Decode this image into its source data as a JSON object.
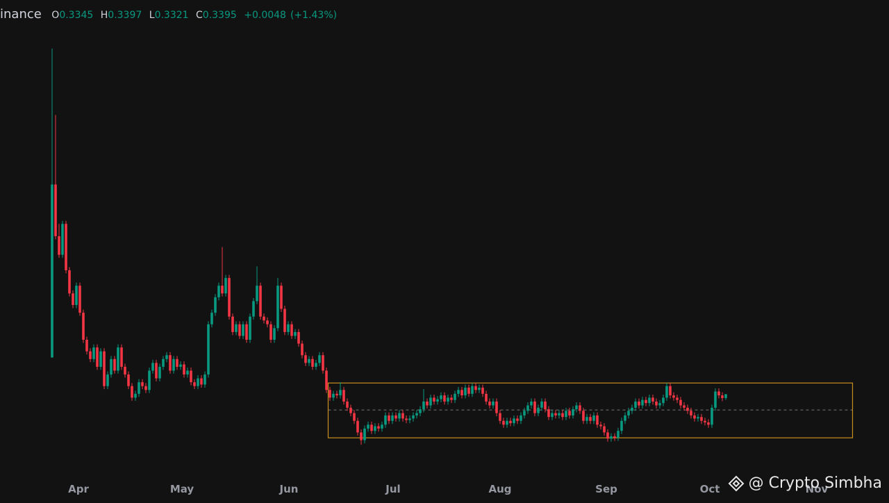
{
  "header": {
    "symbol": "inance",
    "labels": [
      "O",
      "H",
      "L",
      "C"
    ],
    "change": "+0.0048",
    "change_percent": "(+1.43%)"
  },
  "watermark": "@ Crypto Simbha",
  "chart_data": {
    "type": "candlestick",
    "up_color": "#089981",
    "down_color": "#f23645",
    "xlim": [
      -15,
      241
    ],
    "ylim": [
      0.24,
      0.84
    ],
    "xticks": [
      {
        "value": 7.6,
        "label": "Apr"
      },
      {
        "value": 37.4,
        "label": "May"
      },
      {
        "value": 68.2,
        "label": "Jun"
      },
      {
        "value": 98.2,
        "label": "Jul"
      },
      {
        "value": 129,
        "label": "Aug"
      },
      {
        "value": 159.6,
        "label": "Sep"
      },
      {
        "value": 189.4,
        "label": "Oct"
      },
      {
        "value": 220.2,
        "label": "Nov"
      }
    ],
    "range_box": {
      "x": [
        79.5,
        230.5
      ],
      "high": 0.354,
      "low": 0.283,
      "mid": 0.319,
      "color": "#c8901e"
    },
    "candles": [
      [
        0.387,
        0.787,
        0.387,
        0.611
      ],
      [
        0.611,
        0.701,
        0.54,
        0.544
      ],
      [
        0.544,
        0.56,
        0.516,
        0.52
      ],
      [
        0.52,
        0.564,
        0.516,
        0.56
      ],
      [
        0.56,
        0.564,
        0.496,
        0.5
      ],
      [
        0.5,
        0.504,
        0.466,
        0.47
      ],
      [
        0.47,
        0.474,
        0.451,
        0.455
      ],
      [
        0.455,
        0.484,
        0.451,
        0.48
      ],
      [
        0.48,
        0.484,
        0.441,
        0.445
      ],
      [
        0.445,
        0.449,
        0.406,
        0.41
      ],
      [
        0.41,
        0.414,
        0.391,
        0.395
      ],
      [
        0.395,
        0.399,
        0.381,
        0.385
      ],
      [
        0.385,
        0.404,
        0.381,
        0.4
      ],
      [
        0.4,
        0.404,
        0.371,
        0.375
      ],
      [
        0.375,
        0.399,
        0.371,
        0.395
      ],
      [
        0.395,
        0.399,
        0.346,
        0.35
      ],
      [
        0.35,
        0.369,
        0.346,
        0.365
      ],
      [
        0.365,
        0.389,
        0.361,
        0.385
      ],
      [
        0.385,
        0.389,
        0.366,
        0.37
      ],
      [
        0.37,
        0.404,
        0.366,
        0.4
      ],
      [
        0.4,
        0.404,
        0.371,
        0.375
      ],
      [
        0.375,
        0.379,
        0.361,
        0.365
      ],
      [
        0.365,
        0.369,
        0.346,
        0.35
      ],
      [
        0.35,
        0.354,
        0.331,
        0.335
      ],
      [
        0.335,
        0.344,
        0.331,
        0.34
      ],
      [
        0.34,
        0.359,
        0.336,
        0.355
      ],
      [
        0.355,
        0.359,
        0.346,
        0.35
      ],
      [
        0.35,
        0.354,
        0.341,
        0.345
      ],
      [
        0.345,
        0.374,
        0.341,
        0.37
      ],
      [
        0.37,
        0.384,
        0.366,
        0.38
      ],
      [
        0.38,
        0.384,
        0.356,
        0.36
      ],
      [
        0.36,
        0.379,
        0.356,
        0.375
      ],
      [
        0.375,
        0.389,
        0.371,
        0.385
      ],
      [
        0.385,
        0.394,
        0.381,
        0.39
      ],
      [
        0.39,
        0.394,
        0.366,
        0.37
      ],
      [
        0.37,
        0.389,
        0.366,
        0.385
      ],
      [
        0.385,
        0.389,
        0.371,
        0.375
      ],
      [
        0.375,
        0.382,
        0.371,
        0.378
      ],
      [
        0.378,
        0.382,
        0.361,
        0.365
      ],
      [
        0.365,
        0.374,
        0.361,
        0.37
      ],
      [
        0.37,
        0.374,
        0.351,
        0.355
      ],
      [
        0.355,
        0.359,
        0.346,
        0.35
      ],
      [
        0.35,
        0.364,
        0.346,
        0.36
      ],
      [
        0.36,
        0.364,
        0.348,
        0.352
      ],
      [
        0.352,
        0.369,
        0.348,
        0.365
      ],
      [
        0.365,
        0.434,
        0.361,
        0.43
      ],
      [
        0.43,
        0.449,
        0.426,
        0.445
      ],
      [
        0.445,
        0.469,
        0.441,
        0.465
      ],
      [
        0.465,
        0.484,
        0.461,
        0.48
      ],
      [
        0.48,
        0.53,
        0.466,
        0.47
      ],
      [
        0.47,
        0.494,
        0.466,
        0.49
      ],
      [
        0.49,
        0.494,
        0.436,
        0.44
      ],
      [
        0.44,
        0.444,
        0.416,
        0.42
      ],
      [
        0.42,
        0.434,
        0.416,
        0.43
      ],
      [
        0.43,
        0.434,
        0.411,
        0.415
      ],
      [
        0.415,
        0.434,
        0.411,
        0.43
      ],
      [
        0.43,
        0.434,
        0.406,
        0.41
      ],
      [
        0.41,
        0.444,
        0.406,
        0.44
      ],
      [
        0.44,
        0.464,
        0.436,
        0.46
      ],
      [
        0.46,
        0.505,
        0.456,
        0.48
      ],
      [
        0.48,
        0.484,
        0.436,
        0.44
      ],
      [
        0.44,
        0.444,
        0.431,
        0.435
      ],
      [
        0.435,
        0.439,
        0.426,
        0.43
      ],
      [
        0.43,
        0.434,
        0.406,
        0.41
      ],
      [
        0.41,
        0.429,
        0.406,
        0.425
      ],
      [
        0.425,
        0.49,
        0.421,
        0.48
      ],
      [
        0.48,
        0.484,
        0.446,
        0.45
      ],
      [
        0.45,
        0.454,
        0.416,
        0.42
      ],
      [
        0.42,
        0.434,
        0.416,
        0.43
      ],
      [
        0.43,
        0.434,
        0.411,
        0.415
      ],
      [
        0.415,
        0.424,
        0.411,
        0.42
      ],
      [
        0.42,
        0.424,
        0.401,
        0.405
      ],
      [
        0.405,
        0.409,
        0.386,
        0.39
      ],
      [
        0.39,
        0.394,
        0.376,
        0.38
      ],
      [
        0.38,
        0.389,
        0.376,
        0.385
      ],
      [
        0.385,
        0.389,
        0.371,
        0.375
      ],
      [
        0.375,
        0.384,
        0.371,
        0.38
      ],
      [
        0.38,
        0.394,
        0.376,
        0.39
      ],
      [
        0.39,
        0.394,
        0.366,
        0.37
      ],
      [
        0.37,
        0.374,
        0.341,
        0.345
      ],
      [
        0.345,
        0.349,
        0.331,
        0.335
      ],
      [
        0.335,
        0.344,
        0.331,
        0.34
      ],
      [
        0.34,
        0.344,
        0.334,
        0.338
      ],
      [
        0.338,
        0.355,
        0.334,
        0.345
      ],
      [
        0.345,
        0.349,
        0.326,
        0.33
      ],
      [
        0.33,
        0.334,
        0.318,
        0.322
      ],
      [
        0.322,
        0.326,
        0.311,
        0.315
      ],
      [
        0.315,
        0.319,
        0.301,
        0.305
      ],
      [
        0.305,
        0.309,
        0.286,
        0.29
      ],
      [
        0.29,
        0.294,
        0.274,
        0.28
      ],
      [
        0.28,
        0.299,
        0.276,
        0.295
      ],
      [
        0.295,
        0.304,
        0.291,
        0.3
      ],
      [
        0.3,
        0.304,
        0.288,
        0.292
      ],
      [
        0.292,
        0.302,
        0.288,
        0.298
      ],
      [
        0.298,
        0.302,
        0.291,
        0.295
      ],
      [
        0.295,
        0.304,
        0.291,
        0.3
      ],
      [
        0.3,
        0.316,
        0.296,
        0.312
      ],
      [
        0.312,
        0.316,
        0.301,
        0.305
      ],
      [
        0.305,
        0.316,
        0.301,
        0.312
      ],
      [
        0.312,
        0.316,
        0.304,
        0.308
      ],
      [
        0.308,
        0.319,
        0.304,
        0.315
      ],
      [
        0.315,
        0.319,
        0.304,
        0.308
      ],
      [
        0.308,
        0.312,
        0.302,
        0.306
      ],
      [
        0.306,
        0.312,
        0.302,
        0.308
      ],
      [
        0.308,
        0.316,
        0.304,
        0.312
      ],
      [
        0.312,
        0.319,
        0.308,
        0.315
      ],
      [
        0.315,
        0.324,
        0.311,
        0.32
      ],
      [
        0.32,
        0.346,
        0.316,
        0.33
      ],
      [
        0.33,
        0.334,
        0.321,
        0.325
      ],
      [
        0.325,
        0.339,
        0.321,
        0.335
      ],
      [
        0.335,
        0.339,
        0.326,
        0.33
      ],
      [
        0.33,
        0.337,
        0.326,
        0.333
      ],
      [
        0.333,
        0.342,
        0.329,
        0.338
      ],
      [
        0.338,
        0.342,
        0.326,
        0.33
      ],
      [
        0.33,
        0.339,
        0.326,
        0.335
      ],
      [
        0.335,
        0.339,
        0.328,
        0.332
      ],
      [
        0.332,
        0.344,
        0.328,
        0.34
      ],
      [
        0.34,
        0.349,
        0.336,
        0.345
      ],
      [
        0.345,
        0.349,
        0.334,
        0.338
      ],
      [
        0.338,
        0.352,
        0.334,
        0.348
      ],
      [
        0.348,
        0.352,
        0.336,
        0.34
      ],
      [
        0.34,
        0.354,
        0.336,
        0.35
      ],
      [
        0.35,
        0.354,
        0.341,
        0.345
      ],
      [
        0.345,
        0.352,
        0.341,
        0.348
      ],
      [
        0.348,
        0.352,
        0.336,
        0.34
      ],
      [
        0.34,
        0.344,
        0.326,
        0.33
      ],
      [
        0.33,
        0.334,
        0.321,
        0.325
      ],
      [
        0.325,
        0.334,
        0.321,
        0.33
      ],
      [
        0.33,
        0.334,
        0.311,
        0.315
      ],
      [
        0.315,
        0.319,
        0.301,
        0.305
      ],
      [
        0.305,
        0.309,
        0.296,
        0.3
      ],
      [
        0.3,
        0.309,
        0.296,
        0.305
      ],
      [
        0.305,
        0.309,
        0.298,
        0.302
      ],
      [
        0.302,
        0.312,
        0.298,
        0.308
      ],
      [
        0.308,
        0.312,
        0.301,
        0.305
      ],
      [
        0.305,
        0.316,
        0.301,
        0.312
      ],
      [
        0.312,
        0.322,
        0.308,
        0.318
      ],
      [
        0.318,
        0.329,
        0.314,
        0.325
      ],
      [
        0.325,
        0.334,
        0.321,
        0.33
      ],
      [
        0.33,
        0.334,
        0.311,
        0.315
      ],
      [
        0.315,
        0.326,
        0.311,
        0.322
      ],
      [
        0.322,
        0.334,
        0.318,
        0.33
      ],
      [
        0.33,
        0.334,
        0.316,
        0.32
      ],
      [
        0.32,
        0.324,
        0.306,
        0.31
      ],
      [
        0.31,
        0.319,
        0.306,
        0.315
      ],
      [
        0.315,
        0.319,
        0.308,
        0.312
      ],
      [
        0.312,
        0.319,
        0.308,
        0.315
      ],
      [
        0.315,
        0.319,
        0.306,
        0.31
      ],
      [
        0.31,
        0.322,
        0.306,
        0.318
      ],
      [
        0.318,
        0.322,
        0.308,
        0.312
      ],
      [
        0.312,
        0.324,
        0.308,
        0.32
      ],
      [
        0.32,
        0.329,
        0.316,
        0.325
      ],
      [
        0.325,
        0.329,
        0.314,
        0.318
      ],
      [
        0.318,
        0.322,
        0.301,
        0.305
      ],
      [
        0.305,
        0.314,
        0.301,
        0.31
      ],
      [
        0.31,
        0.314,
        0.301,
        0.305
      ],
      [
        0.305,
        0.316,
        0.301,
        0.312
      ],
      [
        0.312,
        0.316,
        0.296,
        0.3
      ],
      [
        0.3,
        0.304,
        0.294,
        0.298
      ],
      [
        0.298,
        0.302,
        0.286,
        0.29
      ],
      [
        0.29,
        0.294,
        0.278,
        0.282
      ],
      [
        0.282,
        0.289,
        0.278,
        0.285
      ],
      [
        0.285,
        0.289,
        0.279,
        0.283
      ],
      [
        0.283,
        0.296,
        0.279,
        0.292
      ],
      [
        0.292,
        0.309,
        0.288,
        0.305
      ],
      [
        0.305,
        0.316,
        0.301,
        0.312
      ],
      [
        0.312,
        0.322,
        0.308,
        0.318
      ],
      [
        0.318,
        0.326,
        0.314,
        0.322
      ],
      [
        0.322,
        0.334,
        0.318,
        0.33
      ],
      [
        0.33,
        0.334,
        0.321,
        0.325
      ],
      [
        0.325,
        0.336,
        0.321,
        0.332
      ],
      [
        0.332,
        0.336,
        0.324,
        0.328
      ],
      [
        0.328,
        0.339,
        0.324,
        0.335
      ],
      [
        0.335,
        0.339,
        0.326,
        0.33
      ],
      [
        0.33,
        0.334,
        0.321,
        0.325
      ],
      [
        0.325,
        0.332,
        0.321,
        0.328
      ],
      [
        0.328,
        0.339,
        0.324,
        0.335
      ],
      [
        0.335,
        0.354,
        0.331,
        0.35
      ],
      [
        0.35,
        0.354,
        0.334,
        0.338
      ],
      [
        0.338,
        0.342,
        0.331,
        0.335
      ],
      [
        0.335,
        0.339,
        0.328,
        0.332
      ],
      [
        0.332,
        0.336,
        0.321,
        0.325
      ],
      [
        0.325,
        0.329,
        0.318,
        0.322
      ],
      [
        0.322,
        0.326,
        0.314,
        0.318
      ],
      [
        0.318,
        0.322,
        0.308,
        0.312
      ],
      [
        0.312,
        0.316,
        0.304,
        0.308
      ],
      [
        0.308,
        0.314,
        0.304,
        0.31
      ],
      [
        0.31,
        0.314,
        0.301,
        0.305
      ],
      [
        0.305,
        0.309,
        0.299,
        0.303
      ],
      [
        0.303,
        0.307,
        0.296,
        0.3
      ],
      [
        0.3,
        0.326,
        0.296,
        0.322
      ],
      [
        0.322,
        0.347,
        0.318,
        0.343
      ],
      [
        0.343,
        0.347,
        0.334,
        0.338
      ],
      [
        0.338,
        0.342,
        0.3305,
        0.3345
      ],
      [
        0.3345,
        0.3397,
        0.3321,
        0.3395
      ]
    ]
  }
}
